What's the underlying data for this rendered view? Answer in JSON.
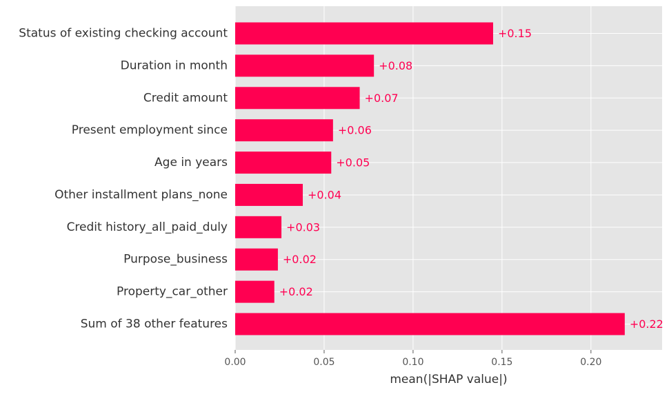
{
  "chart_data": {
    "type": "bar",
    "orientation": "horizontal",
    "title": "",
    "xlabel": "mean(|SHAP value|)",
    "ylabel": "",
    "xlim": [
      0,
      0.24
    ],
    "xticks": [
      0.0,
      0.05,
      0.1,
      0.15,
      0.2
    ],
    "xtick_labels": [
      "0.00",
      "0.05",
      "0.10",
      "0.15",
      "0.20"
    ],
    "grid": true,
    "legend": "none",
    "categories": [
      "Status of existing checking account",
      "Duration in month",
      "Credit amount",
      "Present employment since",
      "Age in years",
      "Other installment plans_none",
      "Credit history_all_paid_duly",
      "Purpose_business",
      "Property_car_other",
      "Sum of 38 other features"
    ],
    "values": [
      0.145,
      0.078,
      0.07,
      0.055,
      0.054,
      0.038,
      0.026,
      0.024,
      0.022,
      0.219
    ],
    "value_labels": [
      "+0.15",
      "+0.08",
      "+0.07",
      "+0.06",
      "+0.05",
      "+0.04",
      "+0.03",
      "+0.02",
      "+0.02",
      "+0.22"
    ],
    "colors": {
      "bar": "#ff0051",
      "value_label": "#ff0051",
      "background": "#e5e5e5",
      "grid": "#ffffff",
      "text": "#333333",
      "tick_text": "#555555"
    }
  }
}
